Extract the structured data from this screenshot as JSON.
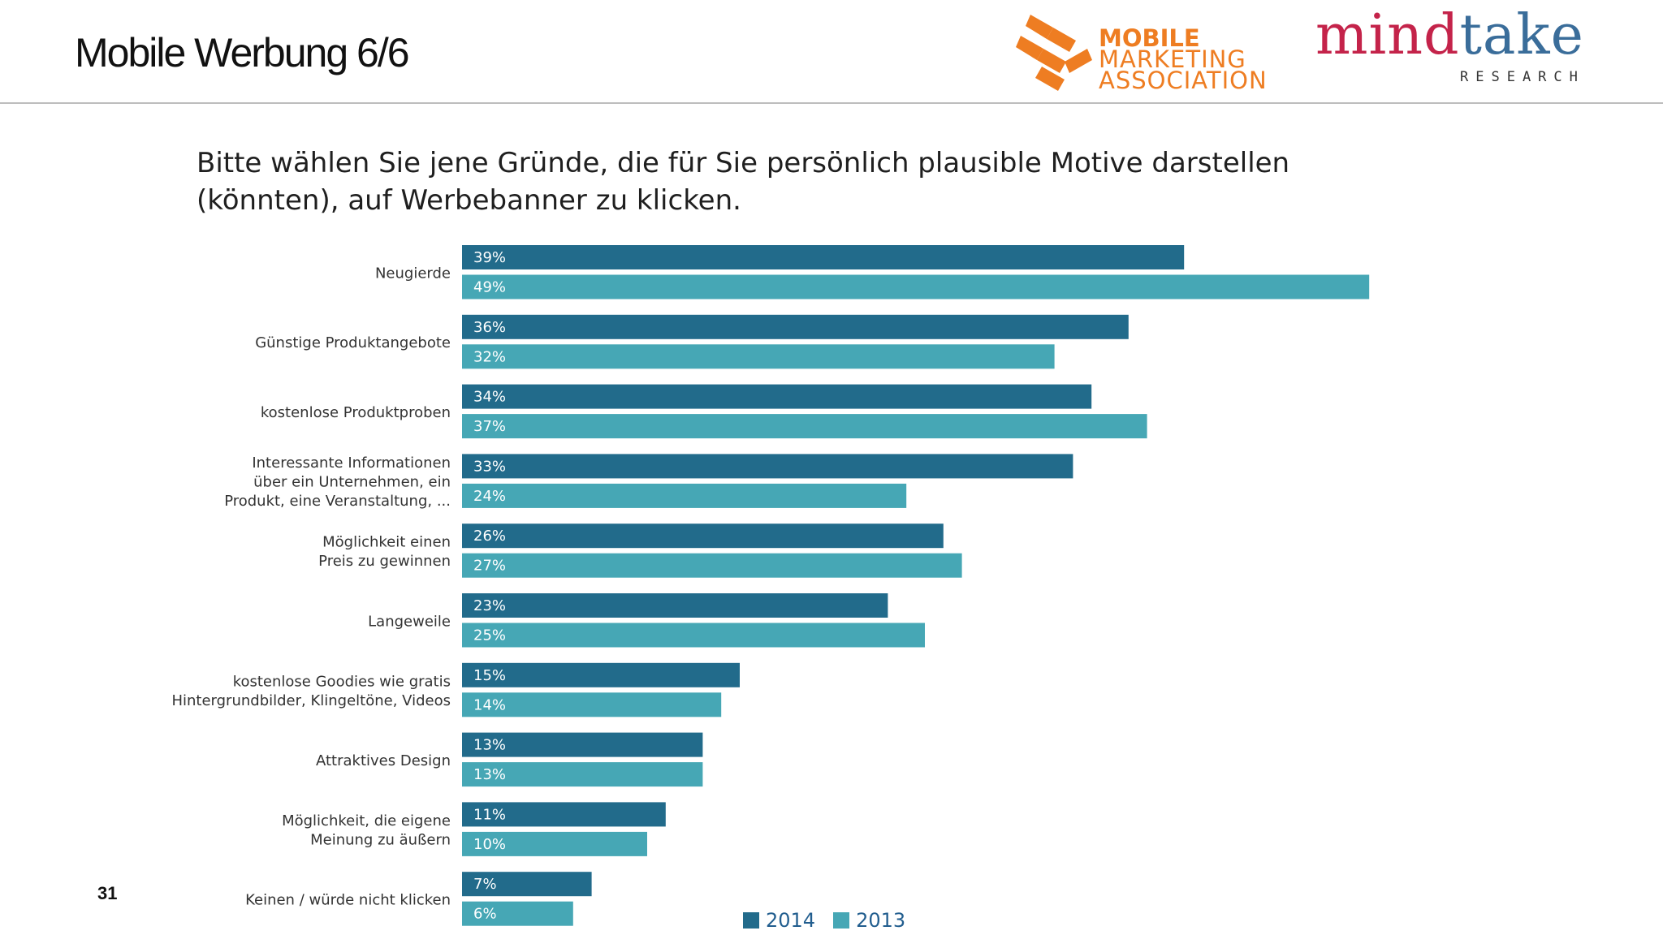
{
  "header": {
    "title": "Mobile Werbung 6/6",
    "mma_logo": {
      "line1": "MOBILE",
      "line2": "MARKETING",
      "line3": "ASSOCIATION",
      "color": "#ee7d22"
    },
    "mindtake_logo": {
      "word_part1": "mind",
      "word_part2": "take",
      "sub": "RESEARCH"
    }
  },
  "page_number": "31",
  "colors": {
    "series_2014": "#226b8b",
    "series_2013": "#46a7b5"
  },
  "chart_data": {
    "type": "bar",
    "orientation": "horizontal",
    "title": "Bitte wählen Sie jene Gründe, die für Sie persönlich plausible Motive darstellen (könnten), auf Werbebanner zu klicken.",
    "categories": [
      "Neugierde",
      "Günstige Produktangebote",
      "kostenlose Produktproben",
      "Interessante Informationen\nüber ein Unternehmen, ein\nProdukt, eine Veranstaltung, ...",
      "Möglichkeit einen\nPreis zu gewinnen",
      "Langeweile",
      "kostenlose Goodies wie gratis\nHintergrundbilder, Klingeltöne, Videos",
      "Attraktives Design",
      "Möglichkeit, die eigene\nMeinung zu äußern",
      "Keinen / würde nicht klicken"
    ],
    "series": [
      {
        "name": "2014",
        "values": [
          39,
          36,
          34,
          33,
          26,
          23,
          15,
          13,
          11,
          7
        ],
        "labels": [
          "39%",
          "36%",
          "34%",
          "33%",
          "26%",
          "23%",
          "15%",
          "13%",
          "11%",
          "7%"
        ]
      },
      {
        "name": "2013",
        "values": [
          49,
          32,
          37,
          24,
          27,
          25,
          14,
          13,
          10,
          6
        ],
        "labels": [
          "49%",
          "32%",
          "37%",
          "24%",
          "27%",
          "25%",
          "14%",
          "13%",
          "10%",
          "6%"
        ]
      }
    ],
    "legend_position": "bottom",
    "grid": false
  }
}
